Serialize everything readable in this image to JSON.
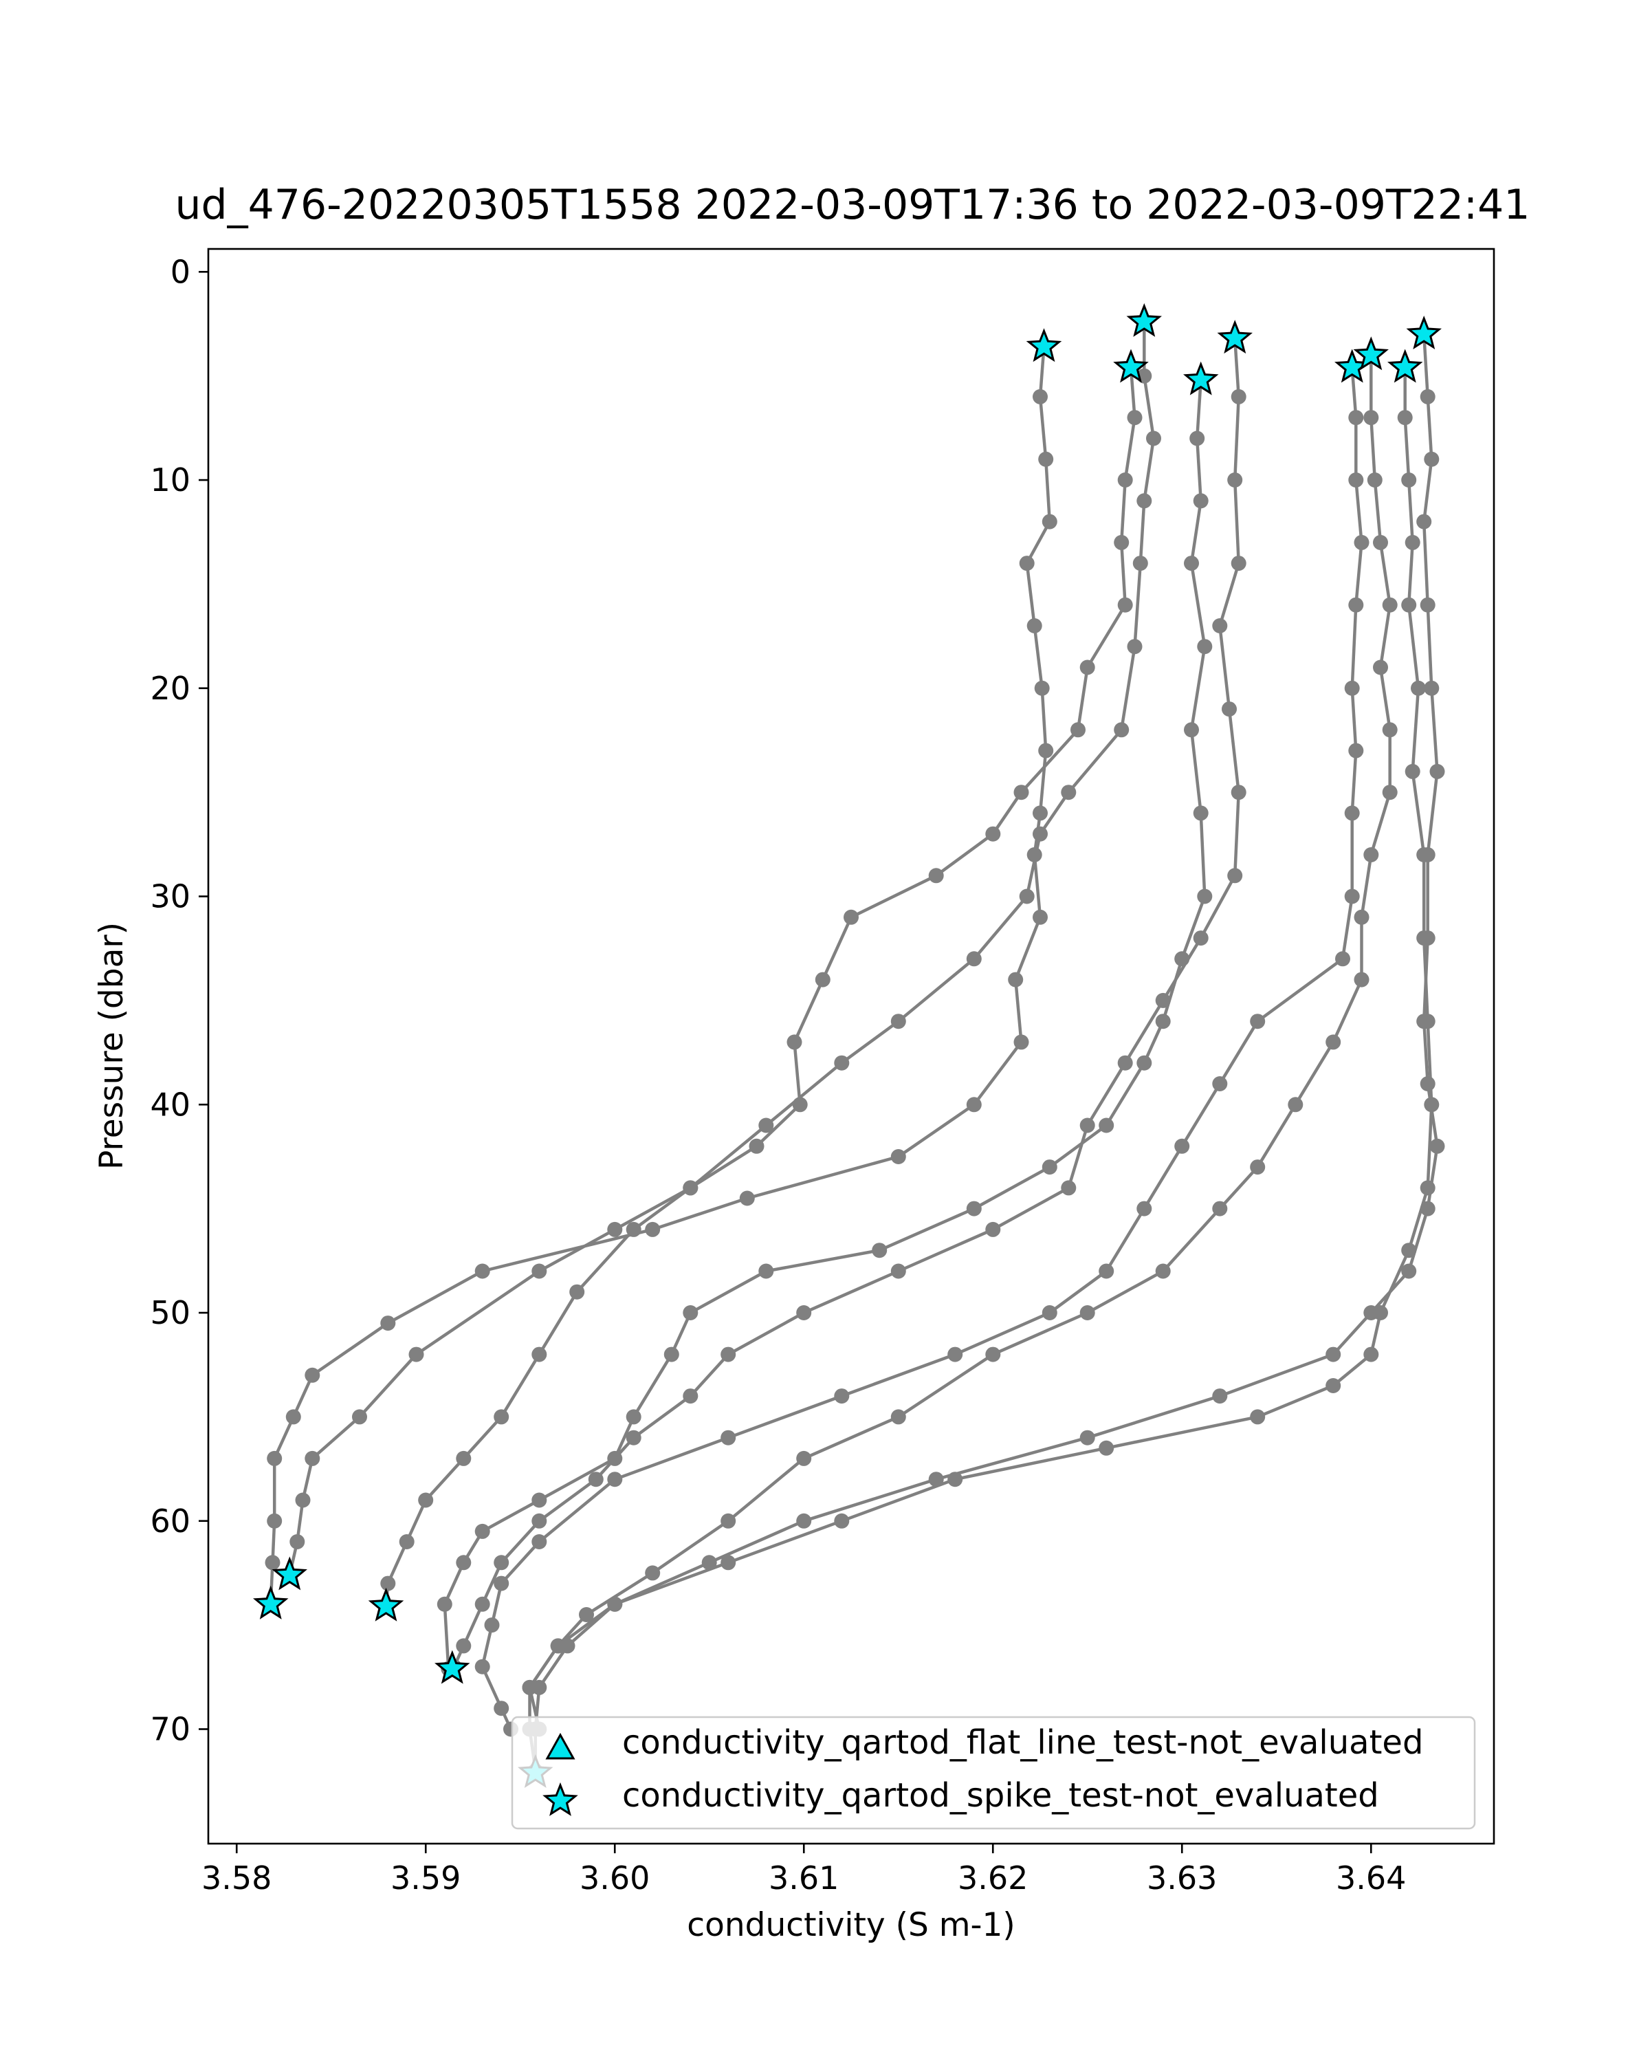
{
  "chart_data": {
    "type": "scatter",
    "title": "ud_476-20220305T1558 2022-03-09T17:36 to 2022-03-09T22:41",
    "xlabel": "conductivity (S m-1)",
    "ylabel": "Pressure (dbar)",
    "xlim": [
      3.5785,
      3.6465
    ],
    "ylim": [
      75.5,
      -1.1
    ],
    "y_inverted": true,
    "grid": false,
    "xticks": [
      3.58,
      3.59,
      3.6,
      3.61,
      3.62,
      3.63,
      3.64
    ],
    "xtick_labels": [
      "3.58",
      "3.59",
      "3.60",
      "3.61",
      "3.62",
      "3.63",
      "3.64"
    ],
    "yticks": [
      0,
      10,
      20,
      30,
      40,
      50,
      60,
      70
    ],
    "ytick_labels": [
      "0",
      "10",
      "20",
      "30",
      "40",
      "50",
      "60",
      "70"
    ],
    "legend_position": "lower-right",
    "colors": {
      "profile": "#808080",
      "flag": "#00e5ee",
      "flag_edge": "#000000"
    },
    "series": [
      {
        "type": "line",
        "points": [
          [
            3.6227,
            3.6
          ],
          [
            3.6225,
            6
          ],
          [
            3.6228,
            9
          ],
          [
            3.623,
            12
          ],
          [
            3.6218,
            14
          ],
          [
            3.6222,
            17
          ],
          [
            3.6226,
            20
          ],
          [
            3.6228,
            23
          ],
          [
            3.6225,
            26
          ],
          [
            3.6222,
            28
          ],
          [
            3.6225,
            31
          ],
          [
            3.6212,
            34
          ],
          [
            3.6215,
            37
          ],
          [
            3.619,
            40
          ],
          [
            3.615,
            42.5
          ],
          [
            3.607,
            44.5
          ],
          [
            3.602,
            46
          ],
          [
            3.593,
            48
          ],
          [
            3.588,
            50.5
          ],
          [
            3.584,
            53
          ],
          [
            3.583,
            55
          ],
          [
            3.582,
            57
          ],
          [
            3.582,
            60
          ],
          [
            3.5819,
            62
          ],
          [
            3.5818,
            64
          ]
        ]
      },
      {
        "type": "line",
        "points": [
          [
            3.6273,
            4.6
          ],
          [
            3.6275,
            7
          ],
          [
            3.627,
            10
          ],
          [
            3.6268,
            13
          ],
          [
            3.627,
            16
          ],
          [
            3.625,
            19
          ],
          [
            3.6245,
            22
          ],
          [
            3.6215,
            25
          ],
          [
            3.62,
            27
          ],
          [
            3.617,
            29
          ],
          [
            3.6125,
            31
          ],
          [
            3.611,
            34
          ],
          [
            3.6095,
            37
          ],
          [
            3.6098,
            40
          ],
          [
            3.6075,
            42
          ],
          [
            3.604,
            44
          ],
          [
            3.6,
            46
          ],
          [
            3.596,
            48
          ],
          [
            3.5895,
            52
          ],
          [
            3.5865,
            55
          ],
          [
            3.584,
            57
          ],
          [
            3.5835,
            59
          ],
          [
            3.5832,
            61
          ],
          [
            3.5828,
            62.6
          ]
        ]
      },
      {
        "type": "line",
        "points": [
          [
            3.628,
            2.4
          ],
          [
            3.628,
            5
          ],
          [
            3.6285,
            8
          ],
          [
            3.628,
            11
          ],
          [
            3.6278,
            14
          ],
          [
            3.6275,
            18
          ],
          [
            3.6268,
            22
          ],
          [
            3.624,
            25
          ],
          [
            3.6225,
            27
          ],
          [
            3.6218,
            30
          ],
          [
            3.619,
            33
          ],
          [
            3.615,
            36
          ],
          [
            3.612,
            38
          ],
          [
            3.608,
            41
          ],
          [
            3.604,
            44
          ],
          [
            3.601,
            46
          ],
          [
            3.598,
            49
          ],
          [
            3.596,
            52
          ],
          [
            3.594,
            55
          ],
          [
            3.592,
            57
          ],
          [
            3.59,
            59
          ],
          [
            3.589,
            61
          ],
          [
            3.588,
            63
          ],
          [
            3.5879,
            64.1
          ]
        ]
      },
      {
        "type": "line",
        "points": [
          [
            3.631,
            5.2
          ],
          [
            3.6308,
            8
          ],
          [
            3.631,
            11
          ],
          [
            3.6305,
            14
          ],
          [
            3.6312,
            18
          ],
          [
            3.6305,
            22
          ],
          [
            3.631,
            26
          ],
          [
            3.6312,
            30
          ],
          [
            3.63,
            33
          ],
          [
            3.629,
            36
          ],
          [
            3.628,
            38
          ],
          [
            3.626,
            41
          ],
          [
            3.623,
            43
          ],
          [
            3.619,
            45
          ],
          [
            3.614,
            47
          ],
          [
            3.608,
            48
          ],
          [
            3.604,
            50
          ],
          [
            3.603,
            52
          ],
          [
            3.601,
            55
          ],
          [
            3.6,
            57
          ],
          [
            3.596,
            59
          ],
          [
            3.593,
            60.5
          ],
          [
            3.592,
            62
          ],
          [
            3.591,
            64
          ],
          [
            3.5912,
            67.1
          ]
        ]
      },
      {
        "type": "line",
        "points": [
          [
            3.6328,
            3.2
          ],
          [
            3.633,
            6
          ],
          [
            3.6328,
            10
          ],
          [
            3.633,
            14
          ],
          [
            3.632,
            17
          ],
          [
            3.6325,
            21
          ],
          [
            3.633,
            25
          ],
          [
            3.6328,
            29
          ],
          [
            3.631,
            32
          ],
          [
            3.629,
            35
          ],
          [
            3.627,
            38
          ],
          [
            3.625,
            41
          ],
          [
            3.624,
            44
          ],
          [
            3.62,
            46
          ],
          [
            3.615,
            48
          ],
          [
            3.61,
            50
          ],
          [
            3.606,
            52
          ],
          [
            3.604,
            54
          ],
          [
            3.601,
            56
          ],
          [
            3.599,
            58
          ],
          [
            3.596,
            60
          ],
          [
            3.594,
            62
          ],
          [
            3.593,
            64
          ],
          [
            3.592,
            66
          ],
          [
            3.5915,
            67
          ]
        ]
      },
      {
        "type": "line",
        "points": [
          [
            3.639,
            4.6
          ],
          [
            3.6392,
            7
          ],
          [
            3.6392,
            10
          ],
          [
            3.6395,
            13
          ],
          [
            3.6392,
            16
          ],
          [
            3.639,
            20
          ],
          [
            3.6392,
            23
          ],
          [
            3.639,
            26
          ],
          [
            3.639,
            30
          ],
          [
            3.6385,
            33
          ],
          [
            3.634,
            36
          ],
          [
            3.632,
            39
          ],
          [
            3.63,
            42
          ],
          [
            3.628,
            45
          ],
          [
            3.626,
            48
          ],
          [
            3.623,
            50
          ],
          [
            3.618,
            52
          ],
          [
            3.612,
            54
          ],
          [
            3.606,
            56
          ],
          [
            3.6,
            58
          ],
          [
            3.596,
            61
          ],
          [
            3.594,
            63
          ],
          [
            3.5935,
            65
          ],
          [
            3.593,
            67
          ],
          [
            3.594,
            69
          ],
          [
            3.5945,
            70
          ]
        ]
      },
      {
        "type": "line",
        "points": [
          [
            3.64,
            4.0
          ],
          [
            3.64,
            7
          ],
          [
            3.6402,
            10
          ],
          [
            3.6405,
            13
          ],
          [
            3.641,
            16
          ],
          [
            3.6405,
            19
          ],
          [
            3.641,
            22
          ],
          [
            3.641,
            25
          ],
          [
            3.64,
            28
          ],
          [
            3.6395,
            31
          ],
          [
            3.6395,
            34
          ],
          [
            3.638,
            37
          ],
          [
            3.636,
            40
          ],
          [
            3.634,
            43
          ],
          [
            3.632,
            45
          ],
          [
            3.629,
            48
          ],
          [
            3.625,
            50
          ],
          [
            3.62,
            52
          ],
          [
            3.615,
            55
          ],
          [
            3.61,
            57
          ],
          [
            3.606,
            60
          ],
          [
            3.602,
            62.5
          ],
          [
            3.5985,
            64.5
          ],
          [
            3.597,
            66
          ],
          [
            3.5955,
            68
          ],
          [
            3.596,
            70
          ]
        ]
      },
      {
        "type": "line",
        "points": [
          [
            3.6418,
            4.6
          ],
          [
            3.6418,
            7
          ],
          [
            3.642,
            10
          ],
          [
            3.6422,
            13
          ],
          [
            3.642,
            16
          ],
          [
            3.6425,
            20
          ],
          [
            3.6422,
            24
          ],
          [
            3.6428,
            28
          ],
          [
            3.6428,
            32
          ],
          [
            3.643,
            36
          ],
          [
            3.6432,
            40
          ],
          [
            3.643,
            44
          ],
          [
            3.642,
            47
          ],
          [
            3.6405,
            50
          ],
          [
            3.64,
            52
          ],
          [
            3.638,
            53.5
          ],
          [
            3.634,
            55
          ],
          [
            3.626,
            56.5
          ],
          [
            3.618,
            58
          ],
          [
            3.612,
            60
          ],
          [
            3.606,
            62
          ],
          [
            3.6,
            64
          ],
          [
            3.597,
            66
          ],
          [
            3.5955,
            68
          ],
          [
            3.5955,
            70
          ],
          [
            3.5958,
            72
          ]
        ]
      },
      {
        "type": "line",
        "points": [
          [
            3.6428,
            3.0
          ],
          [
            3.643,
            6
          ],
          [
            3.6432,
            9
          ],
          [
            3.6428,
            12
          ],
          [
            3.643,
            16
          ],
          [
            3.6432,
            20
          ],
          [
            3.6435,
            24
          ],
          [
            3.643,
            28
          ],
          [
            3.643,
            32
          ],
          [
            3.6428,
            36
          ],
          [
            3.643,
            39
          ],
          [
            3.6435,
            42
          ],
          [
            3.643,
            45
          ],
          [
            3.642,
            48
          ],
          [
            3.64,
            50
          ],
          [
            3.638,
            52
          ],
          [
            3.632,
            54
          ],
          [
            3.625,
            56
          ],
          [
            3.617,
            58
          ],
          [
            3.61,
            60
          ],
          [
            3.605,
            62
          ],
          [
            3.6,
            64
          ],
          [
            3.5975,
            66
          ],
          [
            3.596,
            68
          ],
          [
            3.5958,
            70
          ],
          [
            3.5958,
            72
          ]
        ]
      }
    ],
    "flags": {
      "flat_line_test": {
        "label": "conductivity_qartod_flat_line_test-not_evaluated",
        "marker": "triangle",
        "points": []
      },
      "spike_test": {
        "label": "conductivity_qartod_spike_test-not_evaluated",
        "marker": "star",
        "points": [
          [
            3.6227,
            3.6
          ],
          [
            3.6273,
            4.6
          ],
          [
            3.628,
            2.4
          ],
          [
            3.631,
            5.2
          ],
          [
            3.6328,
            3.2
          ],
          [
            3.639,
            4.6
          ],
          [
            3.64,
            4.0
          ],
          [
            3.6418,
            4.6
          ],
          [
            3.6428,
            3.0
          ],
          [
            3.5828,
            62.6
          ],
          [
            3.5818,
            64.0
          ],
          [
            3.5879,
            64.1
          ],
          [
            3.5914,
            67.1
          ],
          [
            3.5958,
            72.1
          ]
        ]
      }
    }
  }
}
